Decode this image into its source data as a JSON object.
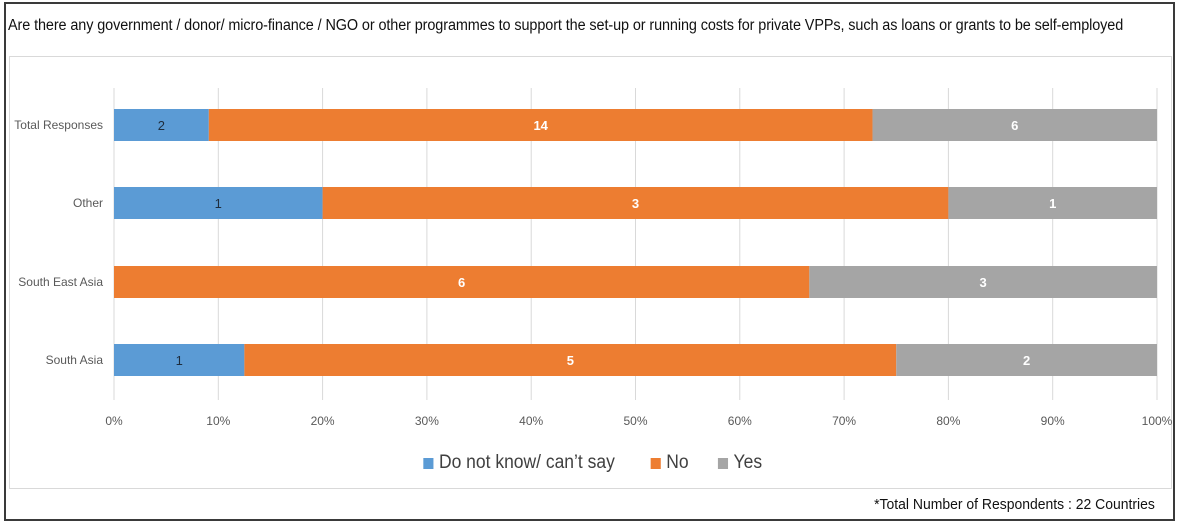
{
  "title": "Are there any government / donor/ micro-finance / NGO or other programmes to support the set-up or running costs for private VPPs, such as loans or grants to be self-employed",
  "footnote": "*Total Number of Respondents : 22 Countries",
  "colors": {
    "dont_know": "#5B9BD5",
    "no": "#ED7D31",
    "yes": "#A5A5A5",
    "grid": "#d9d9d9",
    "axis_text": "#595959"
  },
  "legend": [
    {
      "label": "Do not know/ can’t say",
      "color": "#5B9BD5"
    },
    {
      "label": "No",
      "color": "#ED7D31"
    },
    {
      "label": "Yes",
      "color": "#A5A5A5"
    }
  ],
  "chart_data": {
    "type": "bar",
    "orientation": "horizontal",
    "stacked": "100%",
    "title": "Are there any government / donor/ micro-finance / NGO or other programmes to support the set-up or running costs for private VPPs, such as loans or grants to be self-employed",
    "categories": [
      "Total Responses",
      "Other",
      "South East Asia",
      "South Asia"
    ],
    "series": [
      {
        "name": "Do not know/ can’t say",
        "values": [
          2,
          1,
          0,
          1
        ]
      },
      {
        "name": "No",
        "values": [
          14,
          3,
          6,
          5
        ]
      },
      {
        "name": "Yes",
        "values": [
          6,
          1,
          3,
          2
        ]
      }
    ],
    "xticks": [
      "0%",
      "10%",
      "20%",
      "30%",
      "40%",
      "50%",
      "60%",
      "70%",
      "80%",
      "90%",
      "100%"
    ],
    "xlim": [
      0,
      100
    ],
    "grid": true,
    "legend_position": "bottom"
  }
}
